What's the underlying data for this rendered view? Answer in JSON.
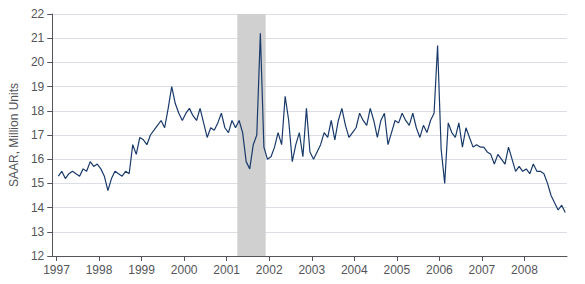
{
  "chart_data": {
    "type": "line",
    "ylabel": "SAAR, Million Units",
    "color": "#1a3a6b",
    "xlim": [
      1996.9,
      2009.0
    ],
    "xticks": [
      1997,
      1998,
      1999,
      2000,
      2001,
      2002,
      2003,
      2004,
      2005,
      2006,
      2007,
      2008
    ],
    "ylim": [
      12,
      22
    ],
    "yticks": [
      12,
      13,
      14,
      15,
      16,
      17,
      18,
      19,
      20,
      21,
      22
    ],
    "grid": true,
    "shaded_range": {
      "xlim": [
        2001.25,
        2001.917
      ],
      "color": "#d0d0d0"
    },
    "x": [
      1997.042,
      1997.125,
      1997.208,
      1997.292,
      1997.375,
      1997.458,
      1997.542,
      1997.625,
      1997.708,
      1997.792,
      1997.875,
      1997.958,
      1998.042,
      1998.125,
      1998.208,
      1998.292,
      1998.375,
      1998.458,
      1998.542,
      1998.625,
      1998.708,
      1998.792,
      1998.875,
      1998.958,
      1999.042,
      1999.125,
      1999.208,
      1999.292,
      1999.375,
      1999.458,
      1999.542,
      1999.625,
      1999.708,
      1999.792,
      1999.875,
      1999.958,
      2000.042,
      2000.125,
      2000.208,
      2000.292,
      2000.375,
      2000.458,
      2000.542,
      2000.625,
      2000.708,
      2000.792,
      2000.875,
      2000.958,
      2001.042,
      2001.125,
      2001.208,
      2001.292,
      2001.375,
      2001.458,
      2001.542,
      2001.625,
      2001.708,
      2001.792,
      2001.875,
      2001.958,
      2002.042,
      2002.125,
      2002.208,
      2002.292,
      2002.375,
      2002.458,
      2002.542,
      2002.625,
      2002.708,
      2002.792,
      2002.875,
      2002.958,
      2003.042,
      2003.125,
      2003.208,
      2003.292,
      2003.375,
      2003.458,
      2003.542,
      2003.625,
      2003.708,
      2003.792,
      2003.875,
      2003.958,
      2004.042,
      2004.125,
      2004.208,
      2004.292,
      2004.375,
      2004.458,
      2004.542,
      2004.625,
      2004.708,
      2004.792,
      2004.875,
      2004.958,
      2005.042,
      2005.125,
      2005.208,
      2005.292,
      2005.375,
      2005.458,
      2005.542,
      2005.625,
      2005.708,
      2005.792,
      2005.875,
      2005.958,
      2006.042,
      2006.125,
      2006.208,
      2006.292,
      2006.375,
      2006.458,
      2006.542,
      2006.625,
      2006.708,
      2006.792,
      2006.875,
      2006.958,
      2007.042,
      2007.125,
      2007.208,
      2007.292,
      2007.375,
      2007.458,
      2007.542,
      2007.625,
      2007.708,
      2007.792,
      2007.875,
      2007.958,
      2008.042,
      2008.125,
      2008.208,
      2008.292,
      2008.375,
      2008.458,
      2008.542,
      2008.625,
      2008.708,
      2008.792,
      2008.875,
      2008.958
    ],
    "values": [
      15.3,
      15.5,
      15.2,
      15.4,
      15.5,
      15.4,
      15.3,
      15.6,
      15.5,
      15.9,
      15.7,
      15.8,
      15.6,
      15.3,
      14.7,
      15.2,
      15.5,
      15.4,
      15.3,
      15.5,
      15.4,
      16.6,
      16.2,
      16.9,
      16.8,
      16.6,
      17.0,
      17.2,
      17.4,
      17.6,
      17.3,
      18.1,
      19.0,
      18.3,
      17.9,
      17.6,
      17.9,
      18.1,
      17.8,
      17.6,
      18.1,
      17.5,
      16.9,
      17.3,
      17.2,
      17.5,
      17.9,
      17.3,
      17.1,
      17.6,
      17.3,
      17.6,
      17.1,
      15.9,
      15.6,
      16.6,
      17.0,
      21.2,
      16.5,
      16.0,
      16.1,
      16.5,
      17.1,
      16.6,
      18.6,
      17.6,
      15.9,
      16.6,
      17.1,
      16.1,
      18.1,
      16.3,
      16.0,
      16.3,
      16.6,
      17.1,
      16.9,
      17.6,
      16.8,
      17.6,
      18.1,
      17.4,
      16.9,
      17.1,
      17.3,
      17.9,
      17.6,
      17.4,
      18.1,
      17.6,
      16.9,
      17.6,
      17.9,
      16.6,
      17.1,
      17.6,
      17.5,
      17.9,
      17.6,
      17.4,
      17.9,
      17.3,
      16.9,
      17.4,
      17.1,
      17.6,
      17.9,
      20.7,
      16.4,
      15.0,
      17.5,
      17.1,
      16.9,
      17.5,
      16.5,
      17.3,
      16.9,
      16.5,
      16.6,
      16.5,
      16.5,
      16.3,
      16.2,
      15.8,
      16.2,
      16.0,
      15.8,
      16.5,
      16.0,
      15.5,
      15.7,
      15.5,
      15.6,
      15.4,
      15.8,
      15.5,
      15.5,
      15.4,
      15.0,
      14.5,
      14.2,
      13.9,
      14.1,
      13.8
    ]
  }
}
